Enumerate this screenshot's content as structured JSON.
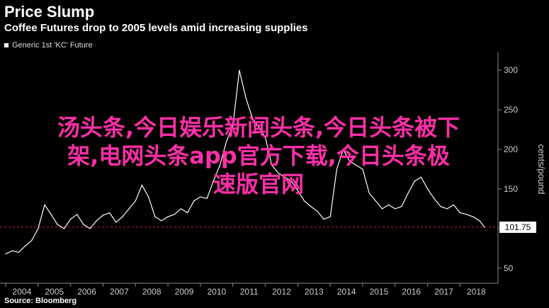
{
  "header": {
    "title": "Price Slump",
    "subtitle": "Coffee Futures drop to 2005 levels amid increasing supplies"
  },
  "legend": {
    "label": "Generic 1st 'KC' Future"
  },
  "footer": {
    "source": "Source: Bloomberg"
  },
  "overlay": {
    "lines": [
      "汤头条,今日娱乐新闻头条,今日头条被下",
      "架,电网头条app官方下载,今日头条极",
      "速版官网"
    ]
  },
  "colors": {
    "background": "#000000",
    "line": "#ffffff",
    "reference": "#d0213f",
    "overlay": "#ff2fa8"
  },
  "chart_data": {
    "type": "line",
    "title": "Price Slump",
    "subtitle": "Coffee Futures drop to 2005 levels amid increasing supplies",
    "ylabel": "cents/pound",
    "ylim": [
      40,
      310
    ],
    "xlim": [
      2004.0,
      2018.95
    ],
    "yticks": [
      50,
      100,
      150,
      200,
      250,
      300
    ],
    "xticks": [
      "2004",
      "2005",
      "2006",
      "2007",
      "2008",
      "2009",
      "2010",
      "2011",
      "2012",
      "2013",
      "2014",
      "2015",
      "2016",
      "2017",
      "2018"
    ],
    "last_value_label": "101.75",
    "last_value": 101.75,
    "reference_line": 101.75,
    "grid": false,
    "legend_position": "top-left",
    "series": [
      {
        "name": "Generic 1st 'KC' Future",
        "x": [
          2004.0,
          2004.2,
          2004.4,
          2004.6,
          2004.8,
          2005.0,
          2005.2,
          2005.4,
          2005.6,
          2005.8,
          2006.0,
          2006.2,
          2006.4,
          2006.6,
          2006.8,
          2007.0,
          2007.2,
          2007.4,
          2007.6,
          2007.8,
          2008.0,
          2008.2,
          2008.4,
          2008.6,
          2008.8,
          2009.0,
          2009.2,
          2009.4,
          2009.6,
          2009.8,
          2010.0,
          2010.2,
          2010.4,
          2010.6,
          2010.8,
          2011.0,
          2011.2,
          2011.4,
          2011.6,
          2011.8,
          2012.0,
          2012.2,
          2012.4,
          2012.6,
          2012.8,
          2013.0,
          2013.2,
          2013.4,
          2013.6,
          2013.8,
          2014.0,
          2014.2,
          2014.4,
          2014.6,
          2014.8,
          2015.0,
          2015.2,
          2015.4,
          2015.6,
          2015.8,
          2016.0,
          2016.2,
          2016.4,
          2016.6,
          2016.8,
          2017.0,
          2017.2,
          2017.4,
          2017.6,
          2017.8,
          2018.0,
          2018.2,
          2018.4,
          2018.6,
          2018.75
        ],
        "values": [
          68,
          72,
          70,
          78,
          85,
          100,
          130,
          118,
          105,
          100,
          112,
          118,
          105,
          100,
          110,
          117,
          120,
          108,
          115,
          125,
          135,
          155,
          140,
          115,
          110,
          115,
          118,
          125,
          120,
          135,
          140,
          138,
          160,
          180,
          210,
          230,
          300,
          265,
          240,
          228,
          215,
          180,
          170,
          165,
          160,
          148,
          135,
          128,
          122,
          112,
          115,
          175,
          200,
          185,
          180,
          175,
          145,
          135,
          125,
          130,
          125,
          128,
          145,
          160,
          165,
          150,
          138,
          128,
          125,
          130,
          120,
          118,
          115,
          110,
          101.75
        ]
      }
    ]
  }
}
